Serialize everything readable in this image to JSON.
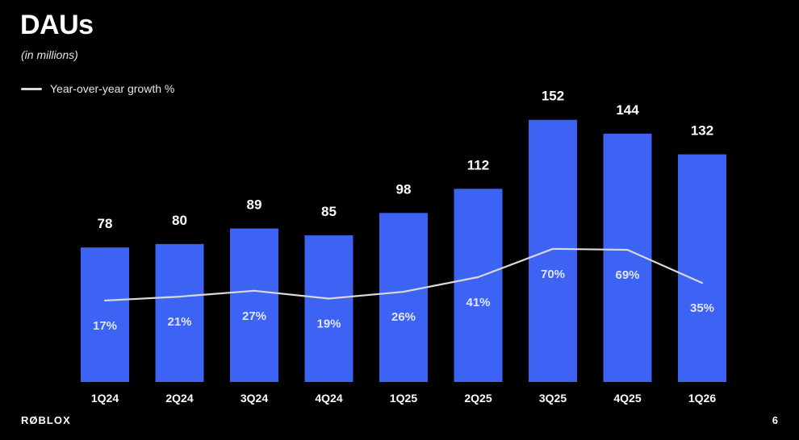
{
  "slide": {
    "title": "DAUs",
    "subtitle": "(in millions)",
    "logo_text": "RØBLOX",
    "page_number": "6"
  },
  "legend": {
    "line_label": "Year-over-year growth %"
  },
  "colors": {
    "background": "#000000",
    "bar": "#3d63f5",
    "line": "#d9d9d9",
    "text": "#ffffff",
    "growth_label": "#dfe6ff"
  },
  "chart_data": {
    "type": "bar",
    "title": "DAUs",
    "subtitle": "(in millions)",
    "categories": [
      "1Q24",
      "2Q24",
      "3Q24",
      "4Q24",
      "1Q25",
      "2Q25",
      "3Q25",
      "4Q25",
      "1Q26"
    ],
    "series": [
      {
        "name": "",
        "type": "bar",
        "values": [
          78,
          80,
          89,
          85,
          98,
          112,
          152,
          144,
          132
        ]
      },
      {
        "name": "Year-over-year growth %",
        "type": "line",
        "values": [
          17,
          21,
          27,
          19,
          26,
          41,
          70,
          69,
          35
        ]
      }
    ],
    "bar_labels": [
      "78",
      "80",
      "89",
      "85",
      "98",
      "112",
      "152",
      "144",
      "132"
    ],
    "line_labels": [
      "17%",
      "21%",
      "27%",
      "19%",
      "26%",
      "41%",
      "70%",
      "69%",
      "35%"
    ],
    "ylim": [
      0,
      160
    ],
    "grid": false,
    "legend_position": "top-left"
  }
}
